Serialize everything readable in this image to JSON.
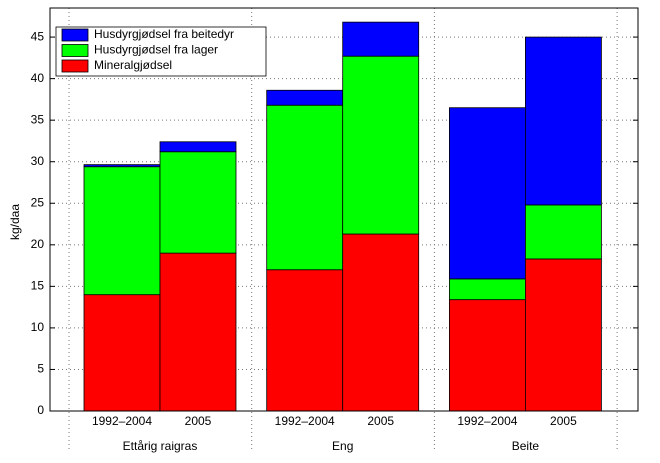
{
  "chart_data": {
    "type": "stacked-bar",
    "y_label": "kg/daa",
    "categories": [
      "1992–2004",
      "2005",
      "1992–2004",
      "2005",
      "1992–2004",
      "2005"
    ],
    "groups": [
      "Ettårig raigras",
      "Eng",
      "Beite"
    ],
    "series": [
      {
        "name": "Mineralgjødsel",
        "color": "#ff0000",
        "values": [
          14.0,
          19.0,
          17.0,
          21.3,
          13.4,
          18.3
        ]
      },
      {
        "name": "Husdyrgjødsel fra lager",
        "color": "#00ff00",
        "values": [
          15.4,
          12.2,
          19.8,
          21.4,
          2.5,
          6.5
        ]
      },
      {
        "name": "Husdyrgjødsel fra beitedyr",
        "color": "#0000ff",
        "values": [
          0.25,
          1.2,
          1.8,
          4.1,
          20.6,
          20.2
        ]
      }
    ],
    "ylim": [
      0,
      48.5
    ],
    "yticks": [
      0,
      5,
      10,
      15,
      20,
      25,
      30,
      35,
      40,
      45
    ],
    "grid": true,
    "legend": "top-left"
  }
}
